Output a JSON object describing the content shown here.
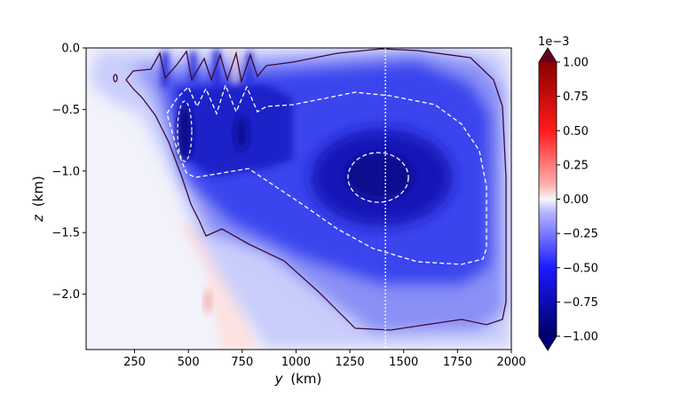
{
  "chart_data": {
    "type": "heatmap",
    "title": "",
    "xlabel": "y",
    "xlabel_unit": "(km)",
    "ylabel": "z",
    "ylabel_unit": "(km)",
    "xlim": [
      25,
      2000
    ],
    "ylim": [
      -2.45,
      0.0
    ],
    "xticks": [
      250,
      500,
      750,
      1000,
      1250,
      1500,
      1750,
      2000
    ],
    "xtick_labels": [
      "250",
      "500",
      "750",
      "1000",
      "1250",
      "1500",
      "1750",
      "2000"
    ],
    "yticks": [
      0.0,
      -0.5,
      -1.0,
      -1.5,
      -2.0
    ],
    "ytick_labels": [
      "0.0",
      "−0.5",
      "−1.0",
      "−1.5",
      "−2.0"
    ],
    "colorbar": {
      "min": -1.0,
      "max": 1.0,
      "scale_label": "1e−3",
      "extend": "both",
      "ticks": [
        1.0,
        0.75,
        0.5,
        0.25,
        0.0,
        -0.25,
        -0.5,
        -0.75,
        -1.0
      ],
      "tick_labels": [
        "1.00",
        "0.75",
        "0.50",
        "0.25",
        "0.00",
        "−0.25",
        "−0.50",
        "−0.75",
        "−1.00"
      ],
      "colors_high": "#67001f",
      "colors_mid": "#f7f7f7",
      "colors_low": "#00007a"
    },
    "vertical_reference_line_y": 1415,
    "core_min_value": -0.95,
    "core_center": [
      1340,
      -1.05
    ]
  }
}
